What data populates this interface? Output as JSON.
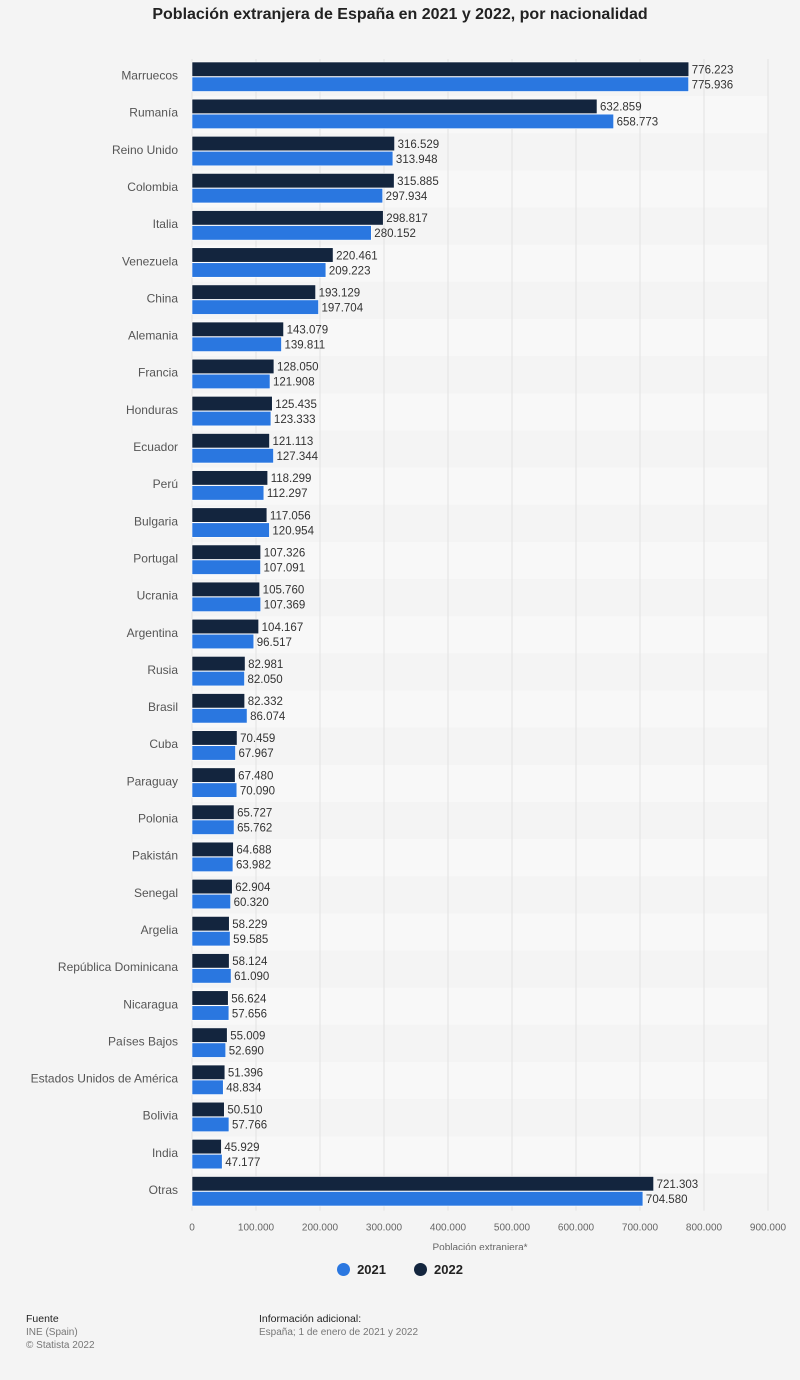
{
  "chart_data": {
    "type": "bar",
    "orientation": "horizontal",
    "title": "Población extranjera de España en 2021 y 2022, por nacionalidad",
    "xlabel": "Población extranjera*",
    "ylabel": "",
    "xlim": [
      0,
      900000
    ],
    "grid": true,
    "legend_position": "bottom-center",
    "ticks": [
      "0",
      "100.000",
      "200.000",
      "300.000",
      "400.000",
      "500.000",
      "600.000",
      "700.000",
      "800.000",
      "900.000"
    ],
    "categories": [
      "Marruecos",
      "Rumanía",
      "Reino Unido",
      "Colombia",
      "Italia",
      "Venezuela",
      "China",
      "Alemania",
      "Francia",
      "Honduras",
      "Ecuador",
      "Perú",
      "Bulgaria",
      "Portugal",
      "Ucrania",
      "Argentina",
      "Rusia",
      "Brasil",
      "Cuba",
      "Paraguay",
      "Polonia",
      "Pakistán",
      "Senegal",
      "Argelia",
      "República Dominicana",
      "Nicaragua",
      "Países Bajos",
      "Estados Unidos de América",
      "Bolivia",
      "India",
      "Otras"
    ],
    "series": [
      {
        "name": "2022",
        "color": "#13253e",
        "values": [
          776223,
          632859,
          316529,
          315885,
          298817,
          220461,
          193129,
          143079,
          128050,
          125435,
          121113,
          118299,
          117056,
          107326,
          105760,
          104167,
          82981,
          82332,
          70459,
          67480,
          65727,
          64688,
          62904,
          58229,
          58124,
          56624,
          55009,
          51396,
          50510,
          45929,
          721303
        ],
        "labels": [
          "776.223",
          "632.859",
          "316.529",
          "315.885",
          "298.817",
          "220.461",
          "193.129",
          "143.079",
          "128.050",
          "125.435",
          "121.113",
          "118.299",
          "117.056",
          "107.326",
          "105.760",
          "104.167",
          "82.981",
          "82.332",
          "70.459",
          "67.480",
          "65.727",
          "64.688",
          "62.904",
          "58.229",
          "58.124",
          "56.624",
          "55.009",
          "51.396",
          "50.510",
          "45.929",
          "721.303"
        ]
      },
      {
        "name": "2021",
        "color": "#2a77e0",
        "values": [
          775936,
          658773,
          313948,
          297934,
          280152,
          209223,
          197704,
          139811,
          121908,
          123333,
          127344,
          112297,
          120954,
          107091,
          107369,
          96517,
          82050,
          86074,
          67967,
          70090,
          65762,
          63982,
          60320,
          59585,
          61090,
          57656,
          52690,
          48834,
          57766,
          47177,
          704580
        ],
        "labels": [
          "775.936",
          "658.773",
          "313.948",
          "297.934",
          "280.152",
          "209.223",
          "197.704",
          "139.811",
          "121.908",
          "123.333",
          "127.344",
          "112.297",
          "120.954",
          "107.091",
          "107.369",
          "96.517",
          "82.050",
          "86.074",
          "67.967",
          "70.090",
          "65.762",
          "63.982",
          "60.320",
          "59.585",
          "61.090",
          "57.656",
          "52.690",
          "48.834",
          "57.766",
          "47.177",
          "704.580"
        ]
      }
    ],
    "legend": [
      {
        "label": "2021",
        "color": "#2a77e0"
      },
      {
        "label": "2022",
        "color": "#13253e"
      }
    ]
  },
  "footer": {
    "source_heading": "Fuente",
    "source_line1": "INE (Spain)",
    "source_line2": "© Statista 2022",
    "info_heading": "Información adicional:",
    "info_line1": "España; 1 de enero de 2021 y 2022"
  }
}
